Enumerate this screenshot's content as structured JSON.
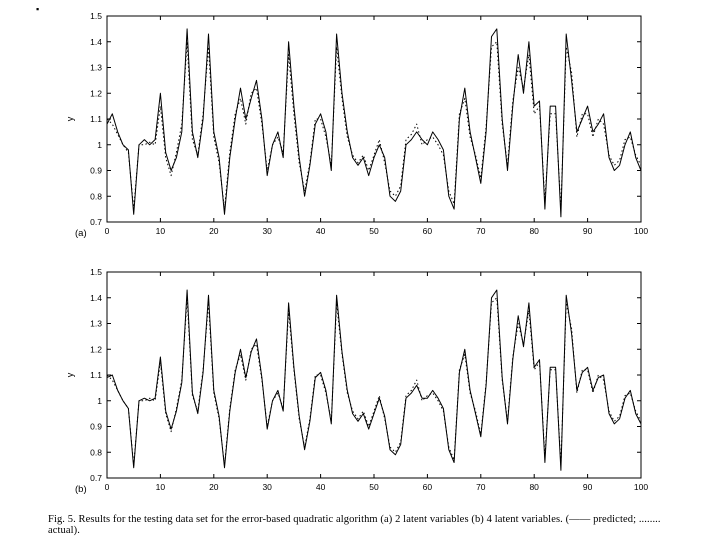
{
  "page": {
    "corner_mark": "▪",
    "caption": "Fig. 5.  Results for the testing data set for the error-based quadratic algorithm (a) 2 latent variables (b) 4 latent variables. (—— predicted; ........ actual)."
  },
  "chart_data": [
    {
      "type": "line",
      "panel_label": "(a)",
      "title": "",
      "xlabel": "",
      "ylabel": "y",
      "xlim": [
        0,
        100
      ],
      "ylim": [
        0.7,
        1.5
      ],
      "xticks": [
        0,
        10,
        20,
        30,
        40,
        50,
        60,
        70,
        80,
        90,
        100
      ],
      "yticks": [
        0.7,
        0.8,
        0.9,
        1,
        1.1,
        1.2,
        1.3,
        1.4,
        1.5
      ],
      "grid": false,
      "legend_position": "none",
      "x": [
        0,
        1,
        2,
        3,
        4,
        5,
        6,
        7,
        8,
        9,
        10,
        11,
        12,
        13,
        14,
        15,
        16,
        17,
        18,
        19,
        20,
        21,
        22,
        23,
        24,
        25,
        26,
        27,
        28,
        29,
        30,
        31,
        32,
        33,
        34,
        35,
        36,
        37,
        38,
        39,
        40,
        41,
        42,
        43,
        44,
        45,
        46,
        47,
        48,
        49,
        50,
        51,
        52,
        53,
        54,
        55,
        56,
        57,
        58,
        59,
        60,
        61,
        62,
        63,
        64,
        65,
        66,
        67,
        68,
        69,
        70,
        71,
        72,
        73,
        74,
        75,
        76,
        77,
        78,
        79,
        80,
        81,
        82,
        83,
        84,
        85,
        86,
        87,
        88,
        89,
        90,
        91,
        92,
        93,
        94,
        95,
        96,
        97,
        98,
        99,
        100
      ],
      "series": [
        {
          "name": "predicted",
          "style": "solid",
          "values": [
            1.08,
            1.12,
            1.05,
            1.0,
            0.98,
            0.73,
            1.0,
            1.02,
            1.0,
            1.02,
            1.2,
            0.97,
            0.9,
            0.95,
            1.05,
            1.45,
            1.05,
            0.95,
            1.1,
            1.43,
            1.05,
            0.95,
            0.73,
            0.95,
            1.1,
            1.22,
            1.1,
            1.18,
            1.25,
            1.1,
            0.88,
            1.0,
            1.05,
            0.95,
            1.4,
            1.15,
            0.95,
            0.8,
            0.92,
            1.08,
            1.12,
            1.05,
            0.9,
            1.43,
            1.2,
            1.05,
            0.95,
            0.92,
            0.95,
            0.88,
            0.95,
            1.0,
            0.95,
            0.8,
            0.78,
            0.82,
            1.0,
            1.02,
            1.05,
            1.02,
            1.0,
            1.05,
            1.02,
            0.98,
            0.8,
            0.75,
            1.1,
            1.22,
            1.05,
            0.95,
            0.85,
            1.05,
            1.42,
            1.45,
            1.1,
            0.9,
            1.15,
            1.35,
            1.2,
            1.4,
            1.15,
            1.17,
            0.75,
            1.15,
            1.15,
            0.72,
            1.43,
            1.25,
            1.05,
            1.1,
            1.15,
            1.05,
            1.08,
            1.12,
            0.95,
            0.9,
            0.92,
            1.0,
            1.05,
            0.95,
            0.9
          ]
        },
        {
          "name": "actual",
          "style": "dotted",
          "values": [
            1.1,
            1.08,
            1.04,
            1.0,
            0.97,
            0.75,
            1.0,
            1.0,
            1.01,
            1.0,
            1.15,
            0.95,
            0.88,
            0.97,
            1.08,
            1.4,
            1.02,
            0.96,
            1.12,
            1.38,
            1.03,
            0.93,
            0.75,
            0.97,
            1.12,
            1.18,
            1.08,
            1.2,
            1.22,
            1.08,
            0.9,
            1.0,
            1.03,
            0.97,
            1.35,
            1.12,
            0.93,
            0.82,
            0.93,
            1.1,
            1.1,
            1.03,
            0.92,
            1.38,
            1.18,
            1.03,
            0.96,
            0.93,
            0.96,
            0.9,
            0.96,
            1.02,
            0.93,
            0.82,
            0.8,
            0.84,
            1.02,
            1.04,
            1.08,
            1.0,
            1.02,
            1.03,
            1.0,
            0.96,
            0.82,
            0.77,
            1.12,
            1.18,
            1.03,
            0.96,
            0.87,
            1.07,
            1.38,
            1.4,
            1.08,
            0.92,
            1.17,
            1.3,
            1.22,
            1.35,
            1.12,
            1.15,
            0.78,
            1.12,
            1.12,
            0.75,
            1.38,
            1.28,
            1.03,
            1.12,
            1.12,
            1.03,
            1.1,
            1.08,
            0.96,
            0.92,
            0.94,
            1.02,
            1.03,
            0.96,
            0.92
          ]
        }
      ]
    },
    {
      "type": "line",
      "panel_label": "(b)",
      "title": "",
      "xlabel": "",
      "ylabel": "y",
      "xlim": [
        0,
        100
      ],
      "ylim": [
        0.7,
        1.5
      ],
      "xticks": [
        0,
        10,
        20,
        30,
        40,
        50,
        60,
        70,
        80,
        90,
        100
      ],
      "yticks": [
        0.7,
        0.8,
        0.9,
        1,
        1.1,
        1.2,
        1.3,
        1.4,
        1.5
      ],
      "grid": false,
      "legend_position": "none",
      "x": [
        0,
        1,
        2,
        3,
        4,
        5,
        6,
        7,
        8,
        9,
        10,
        11,
        12,
        13,
        14,
        15,
        16,
        17,
        18,
        19,
        20,
        21,
        22,
        23,
        24,
        25,
        26,
        27,
        28,
        29,
        30,
        31,
        32,
        33,
        34,
        35,
        36,
        37,
        38,
        39,
        40,
        41,
        42,
        43,
        44,
        45,
        46,
        47,
        48,
        49,
        50,
        51,
        52,
        53,
        54,
        55,
        56,
        57,
        58,
        59,
        60,
        61,
        62,
        63,
        64,
        65,
        66,
        67,
        68,
        69,
        70,
        71,
        72,
        73,
        74,
        75,
        76,
        77,
        78,
        79,
        80,
        81,
        82,
        83,
        84,
        85,
        86,
        87,
        88,
        89,
        90,
        91,
        92,
        93,
        94,
        95,
        96,
        97,
        98,
        99,
        100
      ],
      "series": [
        {
          "name": "predicted",
          "style": "solid",
          "values": [
            1.09,
            1.1,
            1.04,
            1.0,
            0.97,
            0.74,
            1.0,
            1.01,
            1.0,
            1.01,
            1.17,
            0.96,
            0.89,
            0.96,
            1.07,
            1.43,
            1.03,
            0.95,
            1.11,
            1.41,
            1.04,
            0.94,
            0.74,
            0.96,
            1.11,
            1.2,
            1.09,
            1.19,
            1.24,
            1.09,
            0.89,
            1.0,
            1.04,
            0.96,
            1.38,
            1.13,
            0.94,
            0.81,
            0.92,
            1.09,
            1.11,
            1.04,
            0.91,
            1.41,
            1.19,
            1.04,
            0.95,
            0.92,
            0.95,
            0.89,
            0.95,
            1.01,
            0.94,
            0.81,
            0.79,
            0.83,
            1.01,
            1.03,
            1.06,
            1.01,
            1.01,
            1.04,
            1.01,
            0.97,
            0.81,
            0.76,
            1.11,
            1.2,
            1.04,
            0.95,
            0.86,
            1.06,
            1.4,
            1.43,
            1.09,
            0.91,
            1.16,
            1.33,
            1.21,
            1.38,
            1.13,
            1.16,
            0.76,
            1.13,
            1.13,
            0.73,
            1.41,
            1.26,
            1.04,
            1.11,
            1.13,
            1.04,
            1.09,
            1.1,
            0.95,
            0.91,
            0.93,
            1.01,
            1.04,
            0.95,
            0.91
          ]
        },
        {
          "name": "actual",
          "style": "dotted",
          "values": [
            1.1,
            1.08,
            1.04,
            1.0,
            0.97,
            0.75,
            1.0,
            1.0,
            1.01,
            1.0,
            1.15,
            0.95,
            0.88,
            0.97,
            1.08,
            1.4,
            1.02,
            0.96,
            1.12,
            1.38,
            1.03,
            0.93,
            0.75,
            0.97,
            1.12,
            1.18,
            1.08,
            1.2,
            1.22,
            1.08,
            0.9,
            1.0,
            1.03,
            0.97,
            1.35,
            1.12,
            0.93,
            0.82,
            0.93,
            1.1,
            1.1,
            1.03,
            0.92,
            1.38,
            1.18,
            1.03,
            0.96,
            0.93,
            0.96,
            0.9,
            0.96,
            1.02,
            0.93,
            0.82,
            0.8,
            0.84,
            1.02,
            1.04,
            1.08,
            1.0,
            1.02,
            1.03,
            1.0,
            0.96,
            0.82,
            0.77,
            1.12,
            1.18,
            1.03,
            0.96,
            0.87,
            1.07,
            1.38,
            1.4,
            1.08,
            0.92,
            1.17,
            1.3,
            1.22,
            1.35,
            1.12,
            1.15,
            0.78,
            1.12,
            1.12,
            0.75,
            1.38,
            1.28,
            1.03,
            1.12,
            1.12,
            1.03,
            1.1,
            1.08,
            0.96,
            0.92,
            0.94,
            1.02,
            1.03,
            0.96,
            0.92
          ]
        }
      ]
    }
  ]
}
